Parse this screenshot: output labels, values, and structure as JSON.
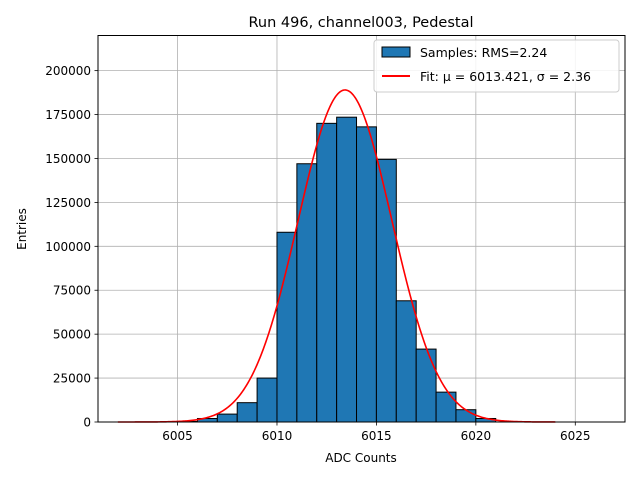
{
  "chart_data": {
    "type": "bar",
    "title": "Run 496, channel003, Pedestal",
    "xlabel": "ADC Counts",
    "ylabel": "Entries",
    "xlim": [
      6001,
      6027.5
    ],
    "ylim": [
      0,
      220000
    ],
    "grid": true,
    "legend_position": "top-right",
    "x_ticks": [
      6005,
      6010,
      6015,
      6020,
      6025
    ],
    "y_ticks": [
      0,
      25000,
      50000,
      75000,
      100000,
      125000,
      150000,
      175000,
      200000
    ],
    "bins": {
      "width": 1,
      "lefts": [
        6005,
        6006,
        6007,
        6008,
        6009,
        6010,
        6011,
        6012,
        6013,
        6014,
        6015,
        6016,
        6017,
        6018,
        6019,
        6020
      ],
      "values": [
        300,
        2000,
        4500,
        11000,
        25000,
        108000,
        147000,
        170000,
        173500,
        168000,
        149500,
        69000,
        41500,
        17000,
        7000,
        2000
      ]
    },
    "series": [
      {
        "name": "Samples: RMS=2.24",
        "kind": "histogram",
        "color": "#1f77b4"
      },
      {
        "name": "Fit: μ = 6013.421, σ = 2.36",
        "kind": "gaussian-fit",
        "color": "#ff0000",
        "mu": 6013.421,
        "sigma": 2.36,
        "amplitude": 189000,
        "x_range": [
          6002,
          6024
        ]
      }
    ]
  }
}
